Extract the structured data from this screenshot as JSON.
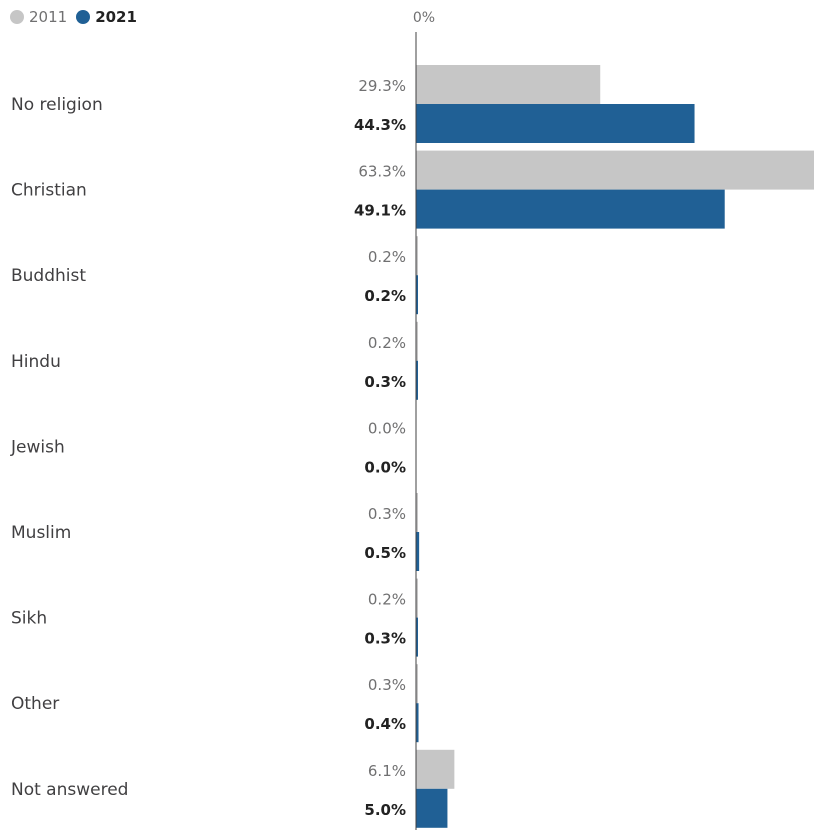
{
  "chart_data": {
    "type": "bar",
    "orientation": "horizontal",
    "categories": [
      "No religion",
      "Christian",
      "Buddhist",
      "Hindu",
      "Jewish",
      "Muslim",
      "Sikh",
      "Other",
      "Not answered"
    ],
    "series": [
      {
        "name": "2011",
        "values": [
          29.3,
          63.3,
          0.2,
          0.2,
          0.0,
          0.3,
          0.2,
          0.3,
          6.1
        ],
        "labels": [
          "29.3%",
          "63.3%",
          "0.2%",
          "0.2%",
          "0.0%",
          "0.3%",
          "0.2%",
          "0.3%",
          "6.1%"
        ],
        "color": "#c6c6c6"
      },
      {
        "name": "2021",
        "values": [
          44.3,
          49.1,
          0.2,
          0.3,
          0.0,
          0.5,
          0.3,
          0.4,
          5.0
        ],
        "labels": [
          "44.3%",
          "49.1%",
          "0.2%",
          "0.3%",
          "0.0%",
          "0.5%",
          "0.3%",
          "0.4%",
          "5.0%"
        ],
        "color": "#206095"
      }
    ],
    "x_tick_label": "0%",
    "xlim": [
      0,
      63.3
    ],
    "legend_placement": "top-left",
    "grid": false
  }
}
